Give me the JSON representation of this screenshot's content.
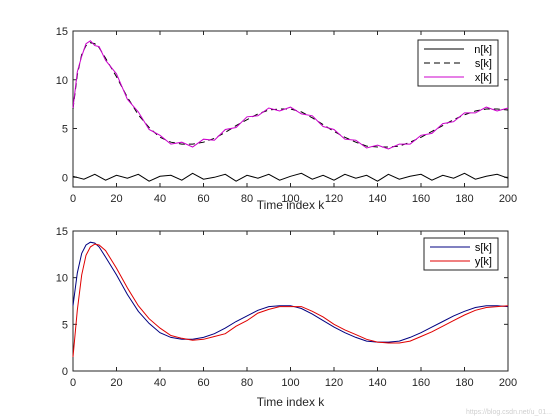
{
  "watermark": "https://blog.csdn.net/u_01...",
  "chart_data": [
    {
      "type": "line",
      "xlabel": "Time index k",
      "xlim": [
        0,
        200
      ],
      "ylim": [
        -1,
        15
      ],
      "xticks": [
        0,
        20,
        40,
        60,
        80,
        100,
        120,
        140,
        160,
        180,
        200
      ],
      "yticks": [
        0,
        5,
        10,
        15
      ],
      "legend_position": "top-right",
      "series": [
        {
          "name": "n[k]",
          "color": "#000000",
          "style": "solid",
          "x": [
            0,
            5,
            10,
            15,
            20,
            25,
            30,
            35,
            40,
            45,
            50,
            55,
            60,
            65,
            70,
            75,
            80,
            85,
            90,
            95,
            100,
            105,
            110,
            115,
            120,
            125,
            130,
            135,
            140,
            145,
            150,
            155,
            160,
            165,
            170,
            175,
            180,
            185,
            190,
            195,
            200
          ],
          "y": [
            0.1,
            -0.2,
            0.3,
            -0.3,
            0.2,
            -0.1,
            0.3,
            -0.4,
            0.1,
            0.2,
            -0.3,
            0.4,
            -0.2,
            0.0,
            0.3,
            -0.4,
            0.2,
            -0.1,
            0.3,
            -0.3,
            0.1,
            0.4,
            -0.2,
            0.2,
            -0.3,
            0.3,
            -0.1,
            0.2,
            -0.4,
            0.3,
            -0.2,
            0.1,
            0.3,
            -0.3,
            0.2,
            -0.1,
            0.4,
            -0.2,
            0.1,
            0.3,
            -0.1
          ]
        },
        {
          "name": "s[k]",
          "color": "#000000",
          "style": "dashed",
          "x": [
            0,
            2,
            4,
            6,
            8,
            10,
            12,
            15,
            20,
            25,
            30,
            35,
            40,
            45,
            50,
            55,
            60,
            65,
            70,
            75,
            80,
            85,
            90,
            95,
            100,
            105,
            110,
            115,
            120,
            125,
            130,
            135,
            140,
            145,
            150,
            155,
            160,
            165,
            170,
            175,
            180,
            185,
            190,
            195,
            200
          ],
          "y": [
            7.0,
            10.5,
            12.6,
            13.5,
            13.8,
            13.7,
            13.3,
            12.2,
            10.3,
            8.2,
            6.4,
            5.1,
            4.1,
            3.6,
            3.4,
            3.4,
            3.6,
            4.0,
            4.6,
            5.3,
            5.9,
            6.5,
            6.9,
            7.0,
            7.0,
            6.7,
            6.1,
            5.4,
            4.7,
            4.1,
            3.6,
            3.2,
            3.1,
            3.1,
            3.2,
            3.6,
            4.1,
            4.7,
            5.3,
            5.9,
            6.4,
            6.8,
            7.0,
            7.0,
            6.9
          ]
        },
        {
          "name": "x[k]",
          "color": "#cc00cc",
          "style": "solid",
          "x": [
            0,
            2,
            4,
            6,
            8,
            10,
            12,
            15,
            20,
            25,
            30,
            35,
            40,
            45,
            50,
            55,
            60,
            65,
            70,
            75,
            80,
            85,
            90,
            95,
            100,
            105,
            110,
            115,
            120,
            125,
            130,
            135,
            140,
            145,
            150,
            155,
            160,
            165,
            170,
            175,
            180,
            185,
            190,
            195,
            200
          ],
          "y": [
            7.1,
            10.8,
            12.4,
            13.7,
            14.0,
            13.5,
            13.4,
            12.0,
            10.6,
            8.0,
            6.7,
            4.9,
            4.3,
            3.4,
            3.6,
            3.1,
            3.9,
            3.8,
            4.9,
            5.1,
            6.2,
            6.3,
            7.1,
            6.8,
            7.2,
            6.5,
            6.3,
            5.2,
            4.9,
            3.9,
            3.8,
            3.0,
            3.3,
            2.9,
            3.4,
            3.4,
            4.3,
            4.5,
            5.5,
            5.7,
            6.6,
            6.6,
            7.2,
            6.8,
            7.1
          ]
        }
      ]
    },
    {
      "type": "line",
      "xlabel": "Time index k",
      "xlim": [
        0,
        200
      ],
      "ylim": [
        0,
        15
      ],
      "xticks": [
        0,
        20,
        40,
        60,
        80,
        100,
        120,
        140,
        160,
        180,
        200
      ],
      "yticks": [
        0,
        5,
        10,
        15
      ],
      "legend_position": "top-right",
      "series": [
        {
          "name": "s[k]",
          "color": "#000080",
          "style": "solid",
          "x": [
            0,
            2,
            4,
            6,
            8,
            10,
            12,
            15,
            20,
            25,
            30,
            35,
            40,
            45,
            50,
            55,
            60,
            65,
            70,
            75,
            80,
            85,
            90,
            95,
            100,
            105,
            110,
            115,
            120,
            125,
            130,
            135,
            140,
            145,
            150,
            155,
            160,
            165,
            170,
            175,
            180,
            185,
            190,
            195,
            200
          ],
          "y": [
            7.0,
            10.5,
            12.6,
            13.5,
            13.8,
            13.7,
            13.3,
            12.2,
            10.3,
            8.2,
            6.4,
            5.1,
            4.1,
            3.6,
            3.4,
            3.4,
            3.6,
            4.0,
            4.6,
            5.3,
            5.9,
            6.5,
            6.9,
            7.0,
            7.0,
            6.7,
            6.1,
            5.4,
            4.7,
            4.1,
            3.6,
            3.2,
            3.1,
            3.1,
            3.2,
            3.6,
            4.1,
            4.7,
            5.3,
            5.9,
            6.4,
            6.8,
            7.0,
            7.0,
            6.9
          ]
        },
        {
          "name": "y[k]",
          "color": "#e00000",
          "style": "solid",
          "x": [
            0,
            2,
            4,
            6,
            8,
            10,
            12,
            15,
            20,
            25,
            30,
            35,
            40,
            45,
            50,
            55,
            60,
            65,
            70,
            75,
            80,
            85,
            90,
            95,
            100,
            105,
            110,
            115,
            120,
            125,
            130,
            135,
            140,
            145,
            150,
            155,
            160,
            165,
            170,
            175,
            180,
            185,
            190,
            195,
            200
          ],
          "y": [
            1.5,
            6.5,
            10.3,
            12.4,
            13.3,
            13.6,
            13.5,
            12.9,
            11.0,
            8.9,
            7.0,
            5.6,
            4.6,
            3.8,
            3.5,
            3.3,
            3.4,
            3.7,
            4.0,
            4.8,
            5.4,
            6.2,
            6.6,
            6.9,
            6.9,
            6.9,
            6.4,
            5.8,
            5.0,
            4.4,
            3.9,
            3.4,
            3.1,
            3.0,
            3.0,
            3.2,
            3.7,
            4.2,
            4.8,
            5.4,
            6.0,
            6.5,
            6.8,
            6.9,
            7.0
          ]
        }
      ]
    }
  ]
}
